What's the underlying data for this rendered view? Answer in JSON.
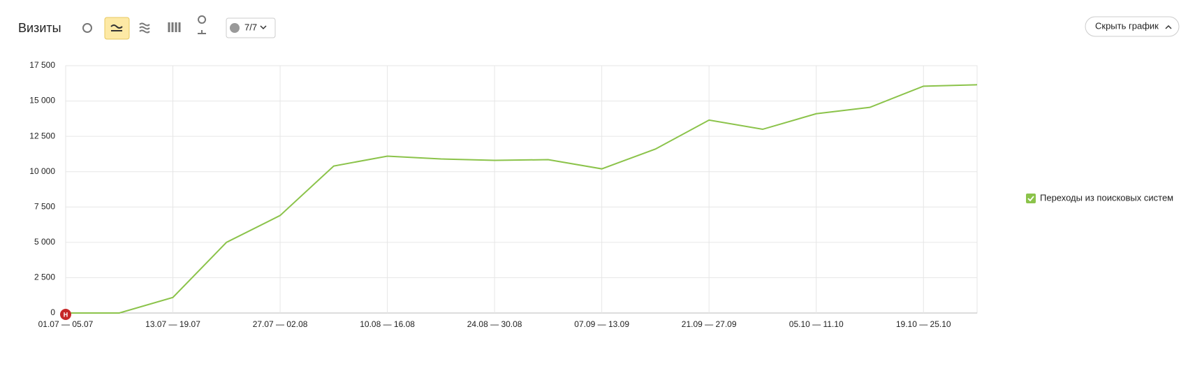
{
  "header": {
    "title": "Визиты",
    "segments_button": "7/7",
    "hide_button": "Скрыть график"
  },
  "chart_data": {
    "type": "line",
    "categories": [
      "01.07 — 05.07",
      null,
      "13.07 — 19.07",
      null,
      "27.07 — 02.08",
      null,
      "10.08 — 16.08",
      null,
      "24.08 — 30.08",
      null,
      "07.09 — 13.09",
      null,
      "21.09 — 27.09",
      null,
      "05.10 — 11.10",
      null,
      "19.10 — 25.10",
      null
    ],
    "series": [
      {
        "name": "Переходы из поисковых систем",
        "color": "#8bc34a",
        "values": [
          0,
          0,
          1100,
          5000,
          6900,
          10400,
          11100,
          10900,
          10800,
          10850,
          10200,
          11600,
          13650,
          13000,
          14100,
          14550,
          16050,
          16150
        ]
      }
    ],
    "ylim": [
      0,
      17500
    ],
    "yticks": [
      0,
      {
        "value": 2500,
        "label": "2 500"
      },
      {
        "value": 5000,
        "label": "5 000"
      },
      {
        "value": 7500,
        "label": "7 500"
      },
      {
        "value": 10000,
        "label": "10 000"
      },
      {
        "value": 12500,
        "label": "12 500"
      },
      {
        "value": 15000,
        "label": "15 000"
      },
      {
        "value": 17500,
        "label": "17 500"
      }
    ],
    "grid": true,
    "annotation": "Н",
    "legend": "right"
  }
}
